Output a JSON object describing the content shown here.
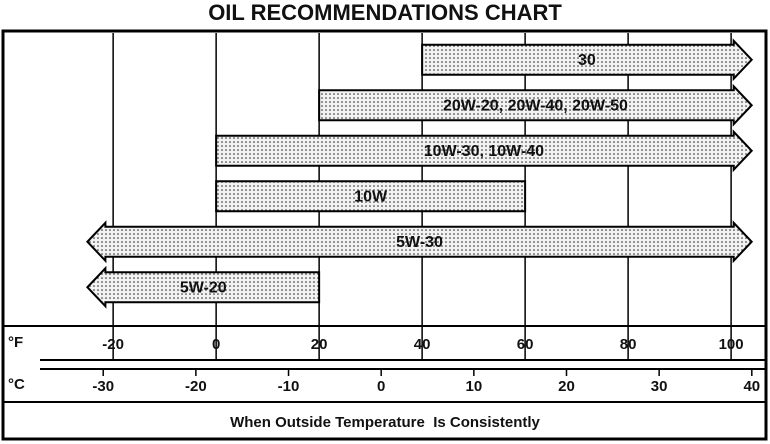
{
  "chart_data": {
    "type": "range_arrow",
    "title": "OIL RECOMMENDATIONS CHART",
    "series": [
      {
        "name": "30",
        "start": 40,
        "end": 104,
        "arrow": "right"
      },
      {
        "name": "20W-20, 20W-40, 20W-50",
        "start": 20,
        "end": 104,
        "arrow": "right"
      },
      {
        "name": "10W-30, 10W-40",
        "start": 0,
        "end": 104,
        "arrow": "right"
      },
      {
        "name": "10W",
        "start": 0,
        "end": 60,
        "arrow": "none"
      },
      {
        "name": "5W-30",
        "start": -25,
        "end": 104,
        "arrow": "both"
      },
      {
        "name": "5W-20",
        "start": -25,
        "end": 20,
        "arrow": "left"
      }
    ],
    "xlabel": "°F",
    "x2label": "°C",
    "xlim": [
      -41,
      106
    ],
    "xticks": [
      -20,
      0,
      20,
      40,
      60,
      80,
      100
    ],
    "x2lim": [
      -40.6,
      41.1
    ],
    "x2ticks": [
      -30,
      -20,
      -10,
      0,
      10,
      20,
      30,
      40
    ],
    "footer": "When Outside Temperature  Is Consistently",
    "grid": true
  }
}
